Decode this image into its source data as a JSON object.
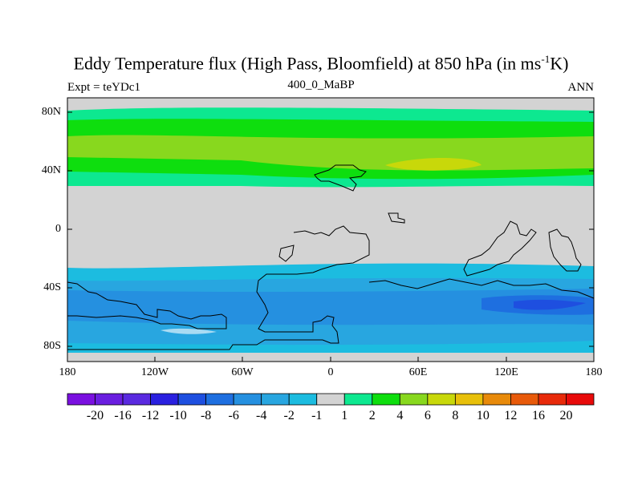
{
  "header": {
    "title_main": "Eddy Temperature flux (High Pass, Bloomfield) at 850 hPa (in ms",
    "title_sup": "-1",
    "title_end": "K)",
    "experiment": "Expt = teYDc1",
    "period": "400_0_MaBP",
    "season": "ANN"
  },
  "axes": {
    "lat_labels": [
      "80N",
      "40N",
      "0",
      "40S",
      "80S"
    ],
    "lon_labels": [
      "180",
      "120W",
      "60W",
      "0",
      "60E",
      "120E",
      "180"
    ]
  },
  "colorbar": {
    "levels": [
      "-20",
      "-16",
      "-12",
      "-10",
      "-8",
      "-6",
      "-4",
      "-2",
      "-1",
      "1",
      "2",
      "4",
      "6",
      "8",
      "10",
      "12",
      "16",
      "20"
    ],
    "colors": [
      "#7a10e0",
      "#6a1ee0",
      "#5a2ae0",
      "#2a20e0",
      "#1e4fe0",
      "#1e6fe0",
      "#2590e0",
      "#28a6e0",
      "#1cbce0",
      "#d3d3d3",
      "#0de890",
      "#0ede0e",
      "#88d81e",
      "#c8d80a",
      "#e8c00a",
      "#e88a0a",
      "#e85a0a",
      "#e82a0a",
      "#e80a0a"
    ]
  },
  "map_fill": {
    "neutral": "#d3d3d3",
    "band_colors": [
      "#0de890",
      "#0ede0e",
      "#88d81e",
      "#c8d80a",
      "#1cbce0",
      "#28a6e0",
      "#2590e0",
      "#1e6fe0",
      "#1e4fe0"
    ]
  }
}
